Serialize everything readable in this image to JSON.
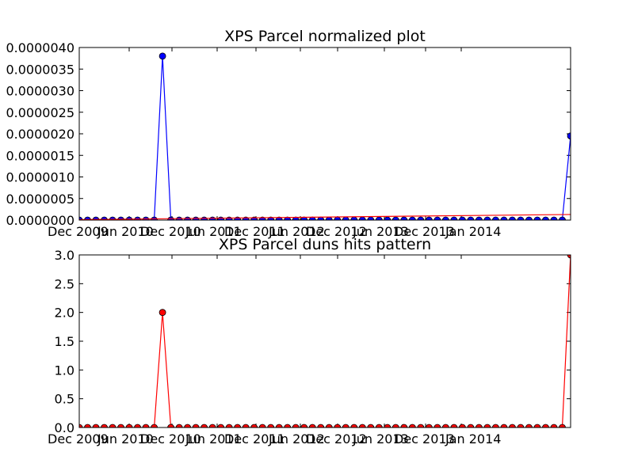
{
  "chart_data": [
    {
      "type": "line",
      "title": "XPS Parcel normalized plot",
      "xlabel": "",
      "ylabel": "",
      "grid": false,
      "x_tick_labels": [
        "Dec 2009",
        "Jun 2010",
        "Dec 2010",
        "Jun 2011",
        "Dec 2011",
        "Jun 2012",
        "Dec 2012",
        "Jun 2013",
        "Dec 2013",
        "Jan 2014"
      ],
      "y_tick_labels": [
        "0.0000000",
        "0.0000005",
        "0.0000010",
        "0.0000015",
        "0.0000020",
        "0.0000025",
        "0.0000030",
        "0.0000035",
        "0.0000040"
      ],
      "ylim": [
        0,
        4e-06
      ],
      "series": [
        {
          "color": "#0000ff",
          "marker": "circle",
          "values": [
            0,
            0,
            0,
            0,
            0,
            0,
            0,
            0,
            0,
            0,
            3.8e-06,
            0,
            0,
            0,
            0,
            0,
            0,
            0,
            0,
            0,
            0,
            0,
            0,
            0,
            0,
            0,
            0,
            0,
            0,
            0,
            0,
            0,
            0,
            0,
            0,
            0,
            0,
            0,
            0,
            0,
            0,
            0,
            0,
            0,
            0,
            0,
            0,
            0,
            0,
            0,
            0,
            0,
            0,
            0,
            0,
            0,
            0,
            0,
            0,
            1.95e-06
          ]
        },
        {
          "color": "#ff0000",
          "marker": "none",
          "values": [
            1e-08,
            1.3e-07
          ]
        }
      ]
    },
    {
      "type": "line",
      "title": "XPS Parcel duns hits pattern",
      "xlabel": "",
      "ylabel": "",
      "grid": false,
      "x_tick_labels": [
        "Dec 2009",
        "Jun 2010",
        "Dec 2010",
        "Jun 2011",
        "Dec 2011",
        "Jun 2012",
        "Dec 2012",
        "Jun 2013",
        "Dec 2013",
        "Jan 2014"
      ],
      "y_tick_labels": [
        "0.0",
        "0.5",
        "1.0",
        "1.5",
        "2.0",
        "2.5",
        "3.0"
      ],
      "ylim": [
        0,
        3
      ],
      "series": [
        {
          "color": "#ff0000",
          "marker": "circle",
          "values": [
            0,
            0,
            0,
            0,
            0,
            0,
            0,
            0,
            0,
            0,
            2,
            0,
            0,
            0,
            0,
            0,
            0,
            0,
            0,
            0,
            0,
            0,
            0,
            0,
            0,
            0,
            0,
            0,
            0,
            0,
            0,
            0,
            0,
            0,
            0,
            0,
            0,
            0,
            0,
            0,
            0,
            0,
            0,
            0,
            0,
            0,
            0,
            0,
            0,
            0,
            0,
            0,
            0,
            0,
            0,
            0,
            0,
            0,
            0,
            3
          ]
        }
      ]
    }
  ]
}
